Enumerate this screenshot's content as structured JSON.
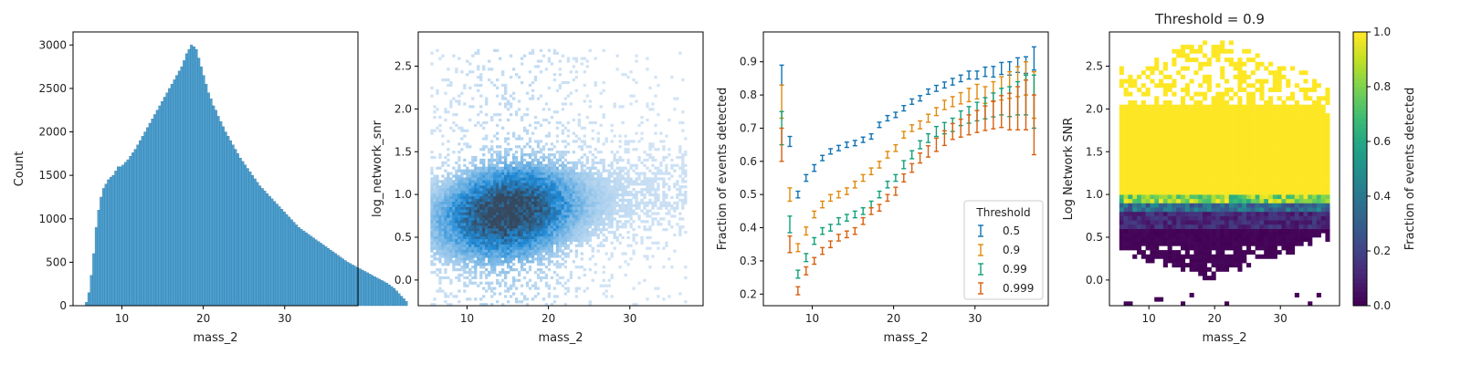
{
  "chart_data": [
    {
      "type": "histogram",
      "xlabel": "mass_2",
      "ylabel": "Count",
      "xlim": [
        4,
        39
      ],
      "ylim": [
        0,
        3150
      ],
      "xticks": [
        "10",
        "20",
        "30"
      ],
      "yticks": [
        "0",
        "500",
        "1000",
        "1500",
        "2000",
        "2500",
        "3000"
      ],
      "color": "#4c9fcf",
      "bins": {
        "start": 5.5,
        "width": 0.3
      },
      "values": [
        40,
        150,
        350,
        600,
        900,
        1100,
        1250,
        1350,
        1400,
        1450,
        1480,
        1500,
        1550,
        1600,
        1600,
        1620,
        1650,
        1680,
        1720,
        1760,
        1800,
        1850,
        1900,
        1950,
        2000,
        2050,
        2100,
        2150,
        2200,
        2250,
        2300,
        2350,
        2400,
        2450,
        2500,
        2550,
        2600,
        2650,
        2700,
        2750,
        2820,
        2900,
        2950,
        3000,
        2980,
        2950,
        2850,
        2750,
        2650,
        2550,
        2450,
        2380,
        2300,
        2250,
        2180,
        2120,
        2060,
        2000,
        1950,
        1900,
        1850,
        1800,
        1750,
        1700,
        1660,
        1620,
        1580,
        1540,
        1500,
        1460,
        1420,
        1380,
        1350,
        1320,
        1290,
        1260,
        1230,
        1200,
        1170,
        1140,
        1110,
        1080,
        1050,
        1020,
        990,
        960,
        930,
        900,
        880,
        860,
        840,
        820,
        800,
        780,
        760,
        740,
        720,
        700,
        680,
        660,
        640,
        620,
        600,
        580,
        560,
        540,
        520,
        500,
        485,
        470,
        455,
        440,
        425,
        410,
        395,
        380,
        365,
        350,
        335,
        320,
        305,
        290,
        275,
        260,
        240,
        220,
        200,
        170,
        140,
        110,
        80,
        50
      ]
    },
    {
      "type": "heatmap",
      "xlabel": "mass_2",
      "ylabel": "log_network_snr",
      "xlim": [
        4,
        39
      ],
      "ylim": [
        -0.3,
        2.9
      ],
      "xticks": [
        "10",
        "20",
        "30"
      ],
      "yticks": [
        "0.0",
        "0.5",
        "1.0",
        "1.5",
        "2.0",
        "2.5"
      ],
      "density": {
        "peak_x": 15,
        "peak_y": 0.8,
        "ridge_slope": 0.012,
        "sigma_y": 0.3,
        "x_range": [
          5.5,
          37
        ],
        "y_range": [
          -0.3,
          2.7
        ]
      },
      "colors": [
        "#d3e4f5",
        "#1f8ad6",
        "#35485e"
      ]
    },
    {
      "type": "scatter",
      "xlabel": "mass_2",
      "ylabel": "Fraction of events detected",
      "xlim": [
        4,
        39
      ],
      "ylim": [
        0.165,
        0.99
      ],
      "xticks": [
        "10",
        "20",
        "30"
      ],
      "yticks": [
        "0.2",
        "0.3",
        "0.4",
        "0.5",
        "0.6",
        "0.7",
        "0.8",
        "0.9"
      ],
      "legend": {
        "title": "Threshold",
        "position": "lower right"
      },
      "x": [
        6.25,
        7.25,
        8.25,
        9.25,
        10.25,
        11.25,
        12.25,
        13.25,
        14.25,
        15.25,
        16.25,
        17.25,
        18.25,
        19.25,
        20.25,
        21.25,
        22.25,
        23.25,
        24.25,
        25.25,
        26.25,
        27.25,
        28.25,
        29.25,
        30.25,
        31.25,
        32.25,
        33.25,
        34.25,
        35.25,
        36.25,
        37.25
      ],
      "series": [
        {
          "name": "0.5",
          "color": "#0f73b3",
          "values": [
            0.86,
            0.66,
            0.5,
            0.55,
            0.58,
            0.61,
            0.63,
            0.64,
            0.65,
            0.655,
            0.665,
            0.675,
            0.71,
            0.73,
            0.74,
            0.76,
            0.78,
            0.79,
            0.81,
            0.82,
            0.83,
            0.84,
            0.85,
            0.86,
            0.86,
            0.87,
            0.87,
            0.88,
            0.88,
            0.89,
            0.89,
            0.91
          ],
          "errors": [
            0.03,
            0.015,
            0.01,
            0.01,
            0.01,
            0.008,
            0.008,
            0.008,
            0.008,
            0.008,
            0.008,
            0.008,
            0.008,
            0.008,
            0.008,
            0.008,
            0.008,
            0.008,
            0.008,
            0.009,
            0.009,
            0.01,
            0.01,
            0.012,
            0.012,
            0.014,
            0.016,
            0.018,
            0.02,
            0.022,
            0.025,
            0.035
          ]
        },
        {
          "name": "0.9",
          "color": "#e08a0b",
          "values": [
            0.78,
            0.5,
            0.34,
            0.39,
            0.44,
            0.47,
            0.49,
            0.5,
            0.51,
            0.53,
            0.55,
            0.57,
            0.59,
            0.62,
            0.64,
            0.68,
            0.7,
            0.71,
            0.73,
            0.75,
            0.77,
            0.78,
            0.79,
            0.8,
            0.81,
            0.8,
            0.81,
            0.82,
            0.83,
            0.84,
            0.85,
            0.8
          ],
          "errors": [
            0.05,
            0.02,
            0.012,
            0.012,
            0.01,
            0.01,
            0.01,
            0.01,
            0.01,
            0.01,
            0.01,
            0.01,
            0.01,
            0.01,
            0.01,
            0.01,
            0.01,
            0.012,
            0.012,
            0.012,
            0.014,
            0.015,
            0.017,
            0.02,
            0.022,
            0.025,
            0.03,
            0.035,
            0.04,
            0.045,
            0.05,
            0.07
          ]
        },
        {
          "name": "0.99",
          "color": "#10a07a",
          "values": [
            0.7,
            0.41,
            0.26,
            0.31,
            0.36,
            0.39,
            0.4,
            0.42,
            0.43,
            0.44,
            0.45,
            0.47,
            0.5,
            0.53,
            0.55,
            0.59,
            0.62,
            0.65,
            0.67,
            0.69,
            0.7,
            0.71,
            0.73,
            0.74,
            0.75,
            0.76,
            0.77,
            0.78,
            0.78,
            0.79,
            0.8,
            0.78
          ],
          "errors": [
            0.05,
            0.025,
            0.012,
            0.012,
            0.01,
            0.01,
            0.01,
            0.01,
            0.01,
            0.01,
            0.01,
            0.01,
            0.01,
            0.01,
            0.01,
            0.012,
            0.012,
            0.012,
            0.013,
            0.015,
            0.017,
            0.02,
            0.022,
            0.025,
            0.028,
            0.032,
            0.036,
            0.04,
            0.045,
            0.05,
            0.06,
            0.08
          ]
        },
        {
          "name": "0.999",
          "color": "#d95f0e",
          "values": [
            0.65,
            0.35,
            0.21,
            0.27,
            0.3,
            0.33,
            0.35,
            0.37,
            0.38,
            0.39,
            0.42,
            0.45,
            0.46,
            0.49,
            0.51,
            0.55,
            0.58,
            0.61,
            0.63,
            0.65,
            0.67,
            0.69,
            0.7,
            0.71,
            0.72,
            0.73,
            0.74,
            0.75,
            0.75,
            0.76,
            0.77,
            0.71
          ],
          "errors": [
            0.05,
            0.025,
            0.012,
            0.012,
            0.01,
            0.01,
            0.01,
            0.01,
            0.01,
            0.01,
            0.01,
            0.01,
            0.01,
            0.01,
            0.012,
            0.012,
            0.013,
            0.015,
            0.017,
            0.02,
            0.022,
            0.024,
            0.027,
            0.03,
            0.033,
            0.037,
            0.042,
            0.048,
            0.055,
            0.065,
            0.075,
            0.09
          ]
        }
      ]
    },
    {
      "type": "heatmap",
      "title": "Threshold = 0.9",
      "xlabel": "mass_2",
      "ylabel": "Log Network SNR",
      "xlim": [
        4,
        39
      ],
      "ylim": [
        -0.3,
        2.9
      ],
      "xticks": [
        "10",
        "20",
        "30"
      ],
      "yticks": [
        "0.0",
        "0.5",
        "1.0",
        "1.5",
        "2.0",
        "2.5"
      ],
      "colorbar": {
        "label": "Fraction of events detected",
        "ticks": [
          "0.0",
          "0.2",
          "0.4",
          "0.6",
          "0.8",
          "1.0"
        ],
        "range": [
          0,
          1
        ]
      },
      "colormap": [
        "#440154",
        "#482475",
        "#414487",
        "#355f8d",
        "#2a788e",
        "#21908d",
        "#22a884",
        "#42be71",
        "#7ad151",
        "#bddf26",
        "#fde725"
      ]
    }
  ]
}
